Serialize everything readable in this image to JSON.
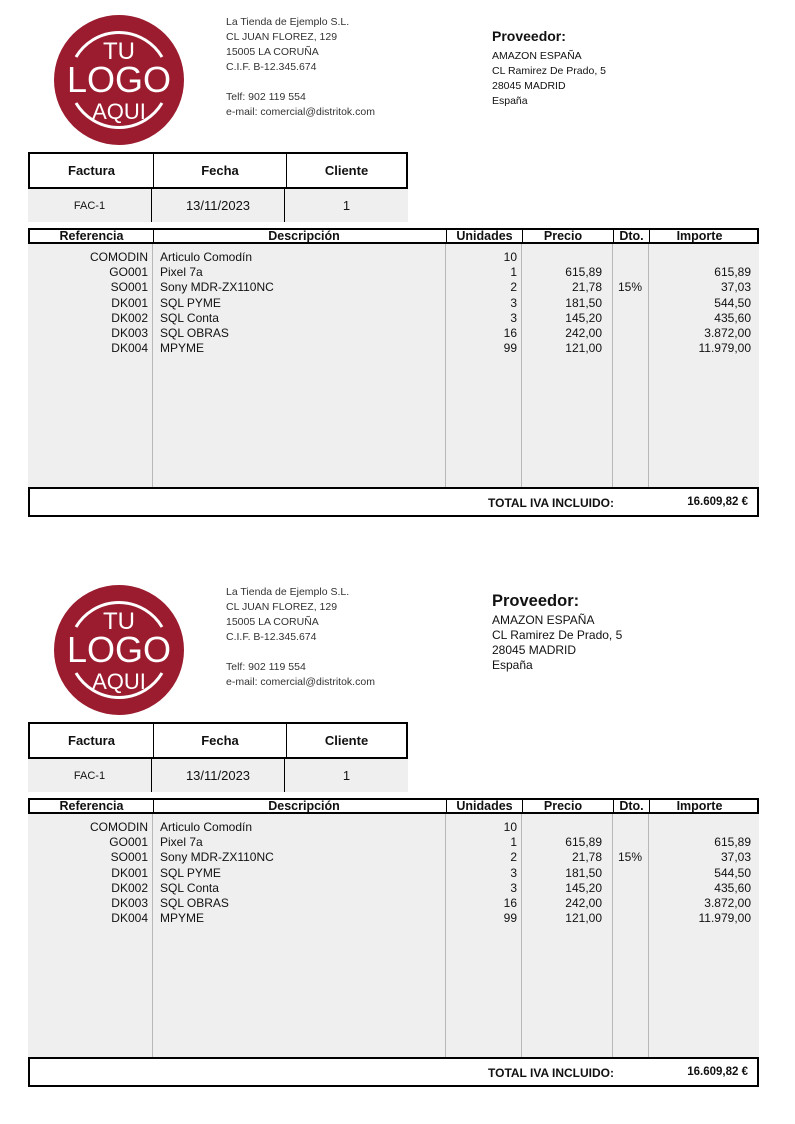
{
  "logo": {
    "text_lines": [
      "TU",
      "LOGO",
      "AQUI"
    ],
    "color": "#9b1c2e"
  },
  "company": {
    "name": "La Tienda de Ejemplo S.L.",
    "address": "CL JUAN FLOREZ, 129",
    "city": "15005 LA CORUÑA",
    "cif": "C.I.F. B-12.345.674",
    "phone": "Telf: 902 119 554",
    "email": "e-mail: comercial@distritok.com"
  },
  "supplier": {
    "title": "Proveedor:",
    "name": "AMAZON ESPAÑA",
    "address": "CL Ramirez De Prado, 5",
    "city": "28045 MADRID",
    "country": "España"
  },
  "header": {
    "labels": [
      "Factura",
      "Fecha",
      "Cliente"
    ],
    "values": [
      "FAC-1",
      "13/11/2023",
      "1"
    ]
  },
  "items": {
    "columns": [
      "Referencia",
      "Descripción",
      "Unidades",
      "Precio",
      "Dto.",
      "Importe"
    ],
    "rows": [
      [
        "COMODIN",
        "Articulo Comodín",
        "10",
        "",
        "",
        ""
      ],
      [
        "GO001",
        "Pixel 7a",
        "1",
        "615,89",
        "",
        "615,89"
      ],
      [
        "SO001",
        "Sony MDR-ZX110NC",
        "2",
        "21,78",
        "15%",
        "37,03"
      ],
      [
        "DK001",
        "SQL PYME",
        "3",
        "181,50",
        "",
        "544,50"
      ],
      [
        "DK002",
        "SQL Conta",
        "3",
        "145,20",
        "",
        "435,60"
      ],
      [
        "DK003",
        "SQL OBRAS",
        "16",
        "242,00",
        "",
        "3.872,00"
      ],
      [
        "DK004",
        "MPYME",
        "99",
        "121,00",
        "",
        "11.979,00"
      ]
    ]
  },
  "total": {
    "label": "TOTAL IVA INCLUIDO:",
    "value": "16.609,82 €"
  }
}
